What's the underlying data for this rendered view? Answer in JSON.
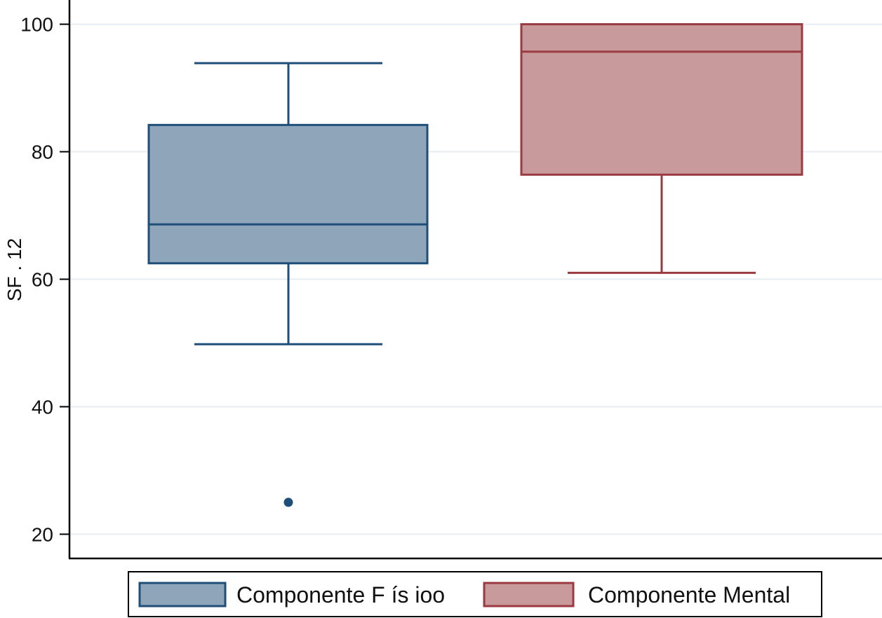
{
  "chart_data": {
    "type": "box",
    "ylabel": "SF . 12",
    "ylim": [
      16.2,
      103.8
    ],
    "yticks": [
      20,
      40,
      60,
      80,
      100
    ],
    "grid": true,
    "legend_position": "bottom",
    "series": [
      {
        "name": "Componente F ís ioo",
        "whisker_low": 49.8,
        "q1": 62.5,
        "median": 68.6,
        "q3": 84.2,
        "whisker_high": 93.9,
        "outliers": [
          25.0
        ],
        "fill_color": "#8ea5ba",
        "stroke_color": "#1f4e79"
      },
      {
        "name": "Componente Mental",
        "whisker_low": 61.0,
        "q1": 76.4,
        "median": 95.7,
        "q3": 100.0,
        "whisker_high": 100.0,
        "outliers": [],
        "fill_color": "#c89a9b",
        "stroke_color": "#9c3a41"
      }
    ]
  }
}
